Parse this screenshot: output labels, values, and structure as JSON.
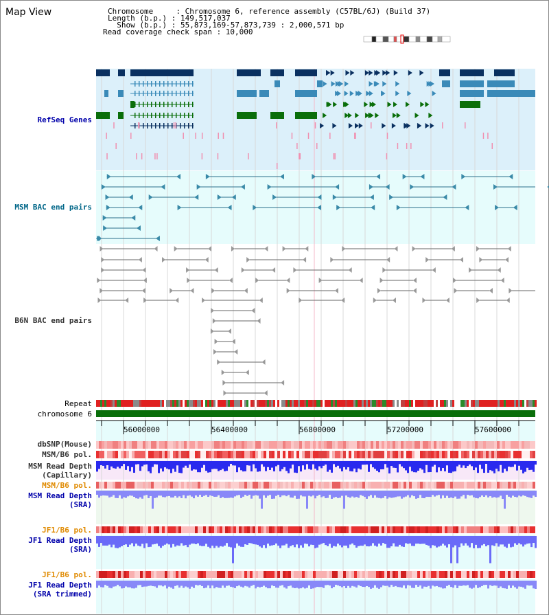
{
  "title": "Map View",
  "header": {
    "line1": "Chromosome     : Chromosome 6, reference assembly (C57BL/6J) (Build 37)",
    "line2": "Length (b.p.) : 149,517,037",
    "line3": "  Show (b.p.) : 55,873,169-57,873,739 : 2,000,571 bp",
    "line4": "Read coverage check span : 10,000"
  },
  "tracks": {
    "refseq": "RefSeq Genes",
    "msm_bac": "MSM BAC end pairs",
    "b6n_bac": "B6N BAC end pairs",
    "repeat": "Repeat",
    "chromosome": "chromosome 6",
    "dbsnp": "dbSNP(Mouse)",
    "msm_b6_pol_1": "MSM/B6 pol.",
    "msm_depth_cap_1": "MSM Read Depth",
    "msm_depth_cap_2": "(Capillary)",
    "msm_b6_pol_2": "MSM/B6 pol.",
    "msm_depth_sra_1": "MSM Read Depth",
    "msm_depth_sra_2": "(SRA)",
    "jf1_pol_1": "JF1/B6 pol.",
    "jf1_depth_1": "JF1 Read Depth",
    "jf1_depth_2": "(SRA)",
    "jf1_pol_2": "JF1/B6 pol.",
    "jf1_trim_1": "JF1 Read Depth",
    "jf1_trim_2": "(SRA trimmed)"
  },
  "axis": {
    "ticks": [
      "56000000",
      "56400000",
      "56800000",
      "57200000",
      "57600000"
    ]
  },
  "colors": {
    "refseq_bg": "#dcf0fa",
    "msm_bg": "#e6fcfc",
    "gene_dark": "#0a3060",
    "gene_mid": "#3a8ab8",
    "gene_green": "#0a6e0a",
    "chromosome_bar": "#0a6e0a",
    "depth_blue": "#2222ee",
    "pol_red": "#e03030"
  }
}
